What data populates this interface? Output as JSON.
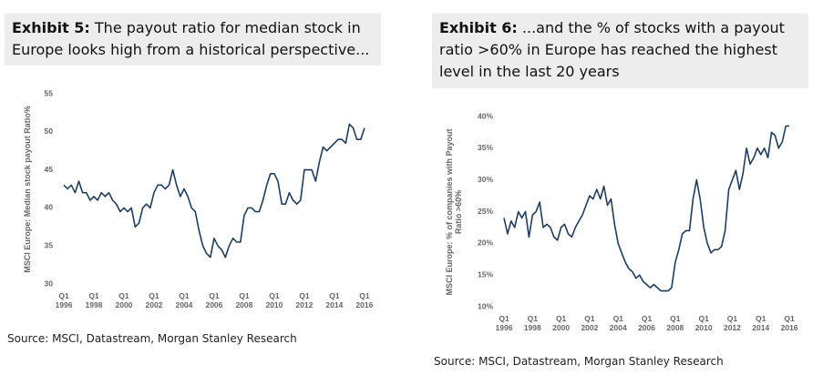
{
  "chart_data": [
    {
      "type": "line",
      "exhibit": "Exhibit 5:",
      "title": "The payout ratio for median stock in Europe looks high from a historical perspective...",
      "ylabel": "MSCI Europe: Median stock payout Ratio%",
      "source": "Source: MSCI, Datastream, Morgan Stanley Research",
      "color": "#1f3d5e",
      "xlim": [
        1996,
        2016.25
      ],
      "ylim": [
        30,
        55
      ],
      "yticks": [
        30,
        35,
        40,
        45,
        50,
        55
      ],
      "xticks": [
        {
          "value": 1996,
          "label": "Q1 1996"
        },
        {
          "value": 1998,
          "label": "Q1 1998"
        },
        {
          "value": 2000,
          "label": "Q1 2000"
        },
        {
          "value": 2002,
          "label": "Q1 2002"
        },
        {
          "value": 2004,
          "label": "Q1 2004"
        },
        {
          "value": 2006,
          "label": "Q1 2006"
        },
        {
          "value": 2008,
          "label": "Q1 2008"
        },
        {
          "value": 2010,
          "label": "Q1 2010"
        },
        {
          "value": 2012,
          "label": "Q1 2012"
        },
        {
          "value": 2014,
          "label": "Q1 2014"
        },
        {
          "value": 2016,
          "label": "Q1 2016"
        }
      ],
      "x": [
        1996,
        1996.25,
        1996.5,
        1996.75,
        1997,
        1997.25,
        1997.5,
        1997.75,
        1998,
        1998.25,
        1998.5,
        1998.75,
        1999,
        1999.25,
        1999.5,
        1999.75,
        2000,
        2000.25,
        2000.5,
        2000.75,
        2001,
        2001.25,
        2001.5,
        2001.75,
        2002,
        2002.25,
        2002.5,
        2002.75,
        2003,
        2003.25,
        2003.5,
        2003.75,
        2004,
        2004.25,
        2004.5,
        2004.75,
        2005,
        2005.25,
        2005.5,
        2005.75,
        2006,
        2006.25,
        2006.5,
        2006.75,
        2007,
        2007.25,
        2007.5,
        2007.75,
        2008,
        2008.25,
        2008.5,
        2008.75,
        2009,
        2009.25,
        2009.5,
        2009.75,
        2010,
        2010.25,
        2010.5,
        2010.75,
        2011,
        2011.25,
        2011.5,
        2011.75,
        2012,
        2012.25,
        2012.5,
        2012.75,
        2013,
        2013.25,
        2013.5,
        2013.75,
        2014,
        2014.25,
        2014.5,
        2014.75,
        2015,
        2015.25,
        2015.5,
        2015.75,
        2016
      ],
      "values": [
        43,
        42.5,
        43,
        42,
        43.5,
        42,
        42,
        41,
        41.5,
        41,
        42,
        41.5,
        42,
        41,
        40.5,
        39.5,
        40,
        39.5,
        40,
        37.5,
        38,
        40,
        40.5,
        40,
        42,
        43,
        43,
        42.5,
        43,
        45,
        43,
        41.5,
        42.5,
        41.5,
        40,
        39.5,
        37,
        35,
        34,
        33.5,
        36,
        35,
        34.5,
        33.5,
        35,
        36,
        35.5,
        35.5,
        39,
        40,
        40,
        39.5,
        39.5,
        41,
        43,
        44.5,
        44.5,
        43.5,
        40.5,
        40.5,
        42,
        41,
        40.5,
        41,
        45,
        45,
        45,
        43.5,
        46,
        48,
        47.5,
        48,
        48.5,
        49,
        49,
        48.5,
        51,
        50.5,
        49,
        49,
        50.5
      ]
    },
    {
      "type": "line",
      "exhibit": "Exhibit 6:",
      "title": "...and the % of stocks with a payout ratio >60% in Europe has reached the highest level in the last 20 years",
      "ylabel": "MSCI Europe: % of companies with Payout Ratio >60%",
      "source": "Source: MSCI, Datastream, Morgan Stanley Research",
      "color": "#1f3d5e",
      "xlim": [
        1996,
        2016.25
      ],
      "ylim": [
        10,
        40
      ],
      "yticks": [
        {
          "value": 10,
          "label": "10%"
        },
        {
          "value": 15,
          "label": "15%"
        },
        {
          "value": 20,
          "label": "20%"
        },
        {
          "value": 25,
          "label": "25%"
        },
        {
          "value": 30,
          "label": "30%"
        },
        {
          "value": 35,
          "label": "35%"
        },
        {
          "value": 40,
          "label": "40%"
        }
      ],
      "xticks": [
        {
          "value": 1996,
          "label": "Q1 1996"
        },
        {
          "value": 1998,
          "label": "Q1 1998"
        },
        {
          "value": 2000,
          "label": "Q1 2000"
        },
        {
          "value": 2002,
          "label": "Q1 2002"
        },
        {
          "value": 2004,
          "label": "Q1 2004"
        },
        {
          "value": 2006,
          "label": "Q1 2006"
        },
        {
          "value": 2008,
          "label": "Q1 2008"
        },
        {
          "value": 2010,
          "label": "Q1 2010"
        },
        {
          "value": 2012,
          "label": "Q1 2012"
        },
        {
          "value": 2014,
          "label": "Q1 2014"
        },
        {
          "value": 2016,
          "label": "Q1 2016"
        }
      ],
      "x": [
        1996,
        1996.25,
        1996.5,
        1996.75,
        1997,
        1997.25,
        1997.5,
        1997.75,
        1998,
        1998.25,
        1998.5,
        1998.75,
        1999,
        1999.25,
        1999.5,
        1999.75,
        2000,
        2000.25,
        2000.5,
        2000.75,
        2001,
        2001.25,
        2001.5,
        2001.75,
        2002,
        2002.25,
        2002.5,
        2002.75,
        2003,
        2003.25,
        2003.5,
        2003.75,
        2004,
        2004.25,
        2004.5,
        2004.75,
        2005,
        2005.25,
        2005.5,
        2005.75,
        2006,
        2006.25,
        2006.5,
        2006.75,
        2007,
        2007.25,
        2007.5,
        2007.75,
        2008,
        2008.25,
        2008.5,
        2008.75,
        2009,
        2009.25,
        2009.5,
        2009.75,
        2010,
        2010.25,
        2010.5,
        2010.75,
        2011,
        2011.25,
        2011.5,
        2011.75,
        2012,
        2012.25,
        2012.5,
        2012.75,
        2013,
        2013.25,
        2013.5,
        2013.75,
        2014,
        2014.25,
        2014.5,
        2014.75,
        2015,
        2015.25,
        2015.5,
        2015.75,
        2016
      ],
      "values": [
        24,
        21.5,
        23.5,
        22.5,
        25,
        24,
        25,
        21,
        24.5,
        25,
        26.5,
        22.5,
        23,
        22.5,
        21,
        20.5,
        22.5,
        23,
        21.5,
        21,
        22.5,
        23.5,
        24.5,
        26,
        27.5,
        27,
        28.5,
        27,
        29,
        26,
        27,
        23,
        20,
        18.5,
        17,
        16,
        15.5,
        14.5,
        15,
        14,
        13.5,
        13,
        13.5,
        13,
        12.5,
        12.5,
        12.5,
        13,
        17,
        19,
        21.5,
        22,
        22,
        27,
        30,
        27,
        22.5,
        20,
        18.5,
        19,
        19,
        19.5,
        22,
        28.5,
        30,
        31.5,
        28.5,
        31,
        35,
        32.5,
        33.5,
        35,
        34,
        35,
        33.5,
        37.5,
        37,
        35,
        36,
        38.5,
        38.5
      ]
    }
  ]
}
